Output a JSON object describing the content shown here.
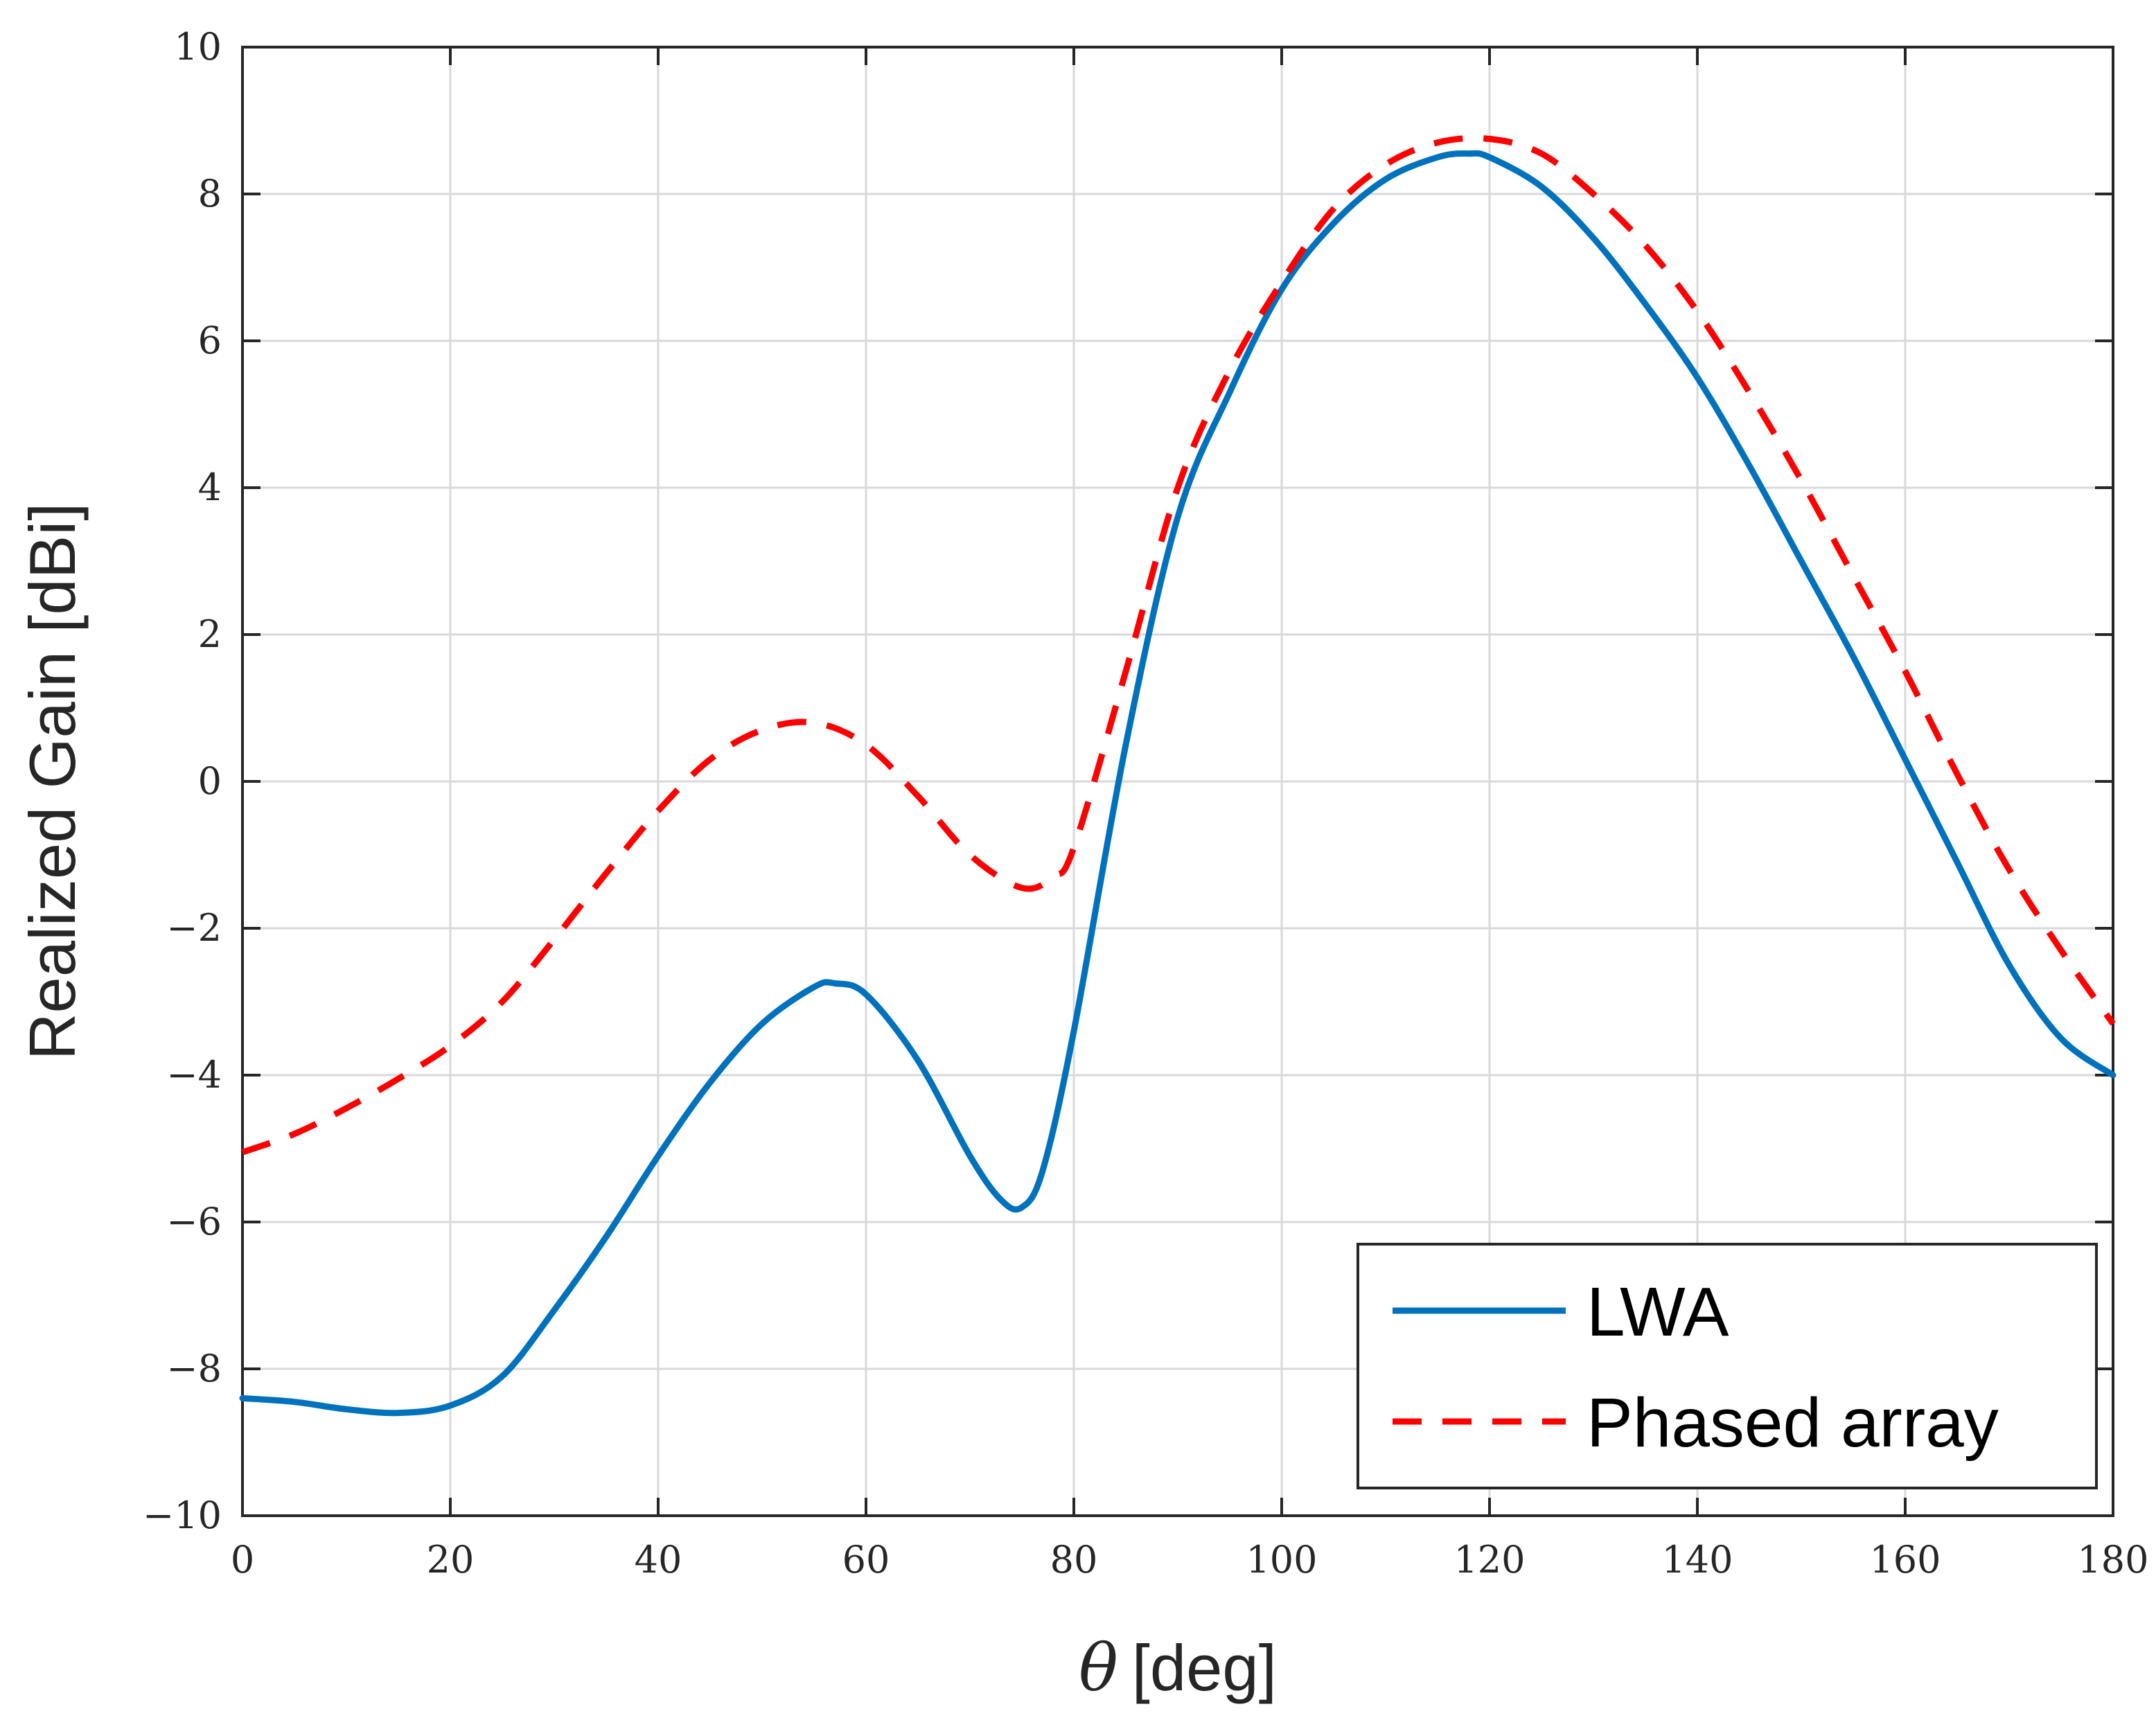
{
  "chart_data": {
    "type": "line",
    "title": "",
    "xlabel_symbol": "θ",
    "xlabel_unit": "[deg]",
    "ylabel": "Realized Gain [dBi]",
    "xlim": [
      0,
      180
    ],
    "ylim": [
      -10,
      10
    ],
    "grid": true,
    "legend_position": "bottom-right",
    "x_ticks": [
      0,
      20,
      40,
      60,
      80,
      100,
      120,
      140,
      160,
      180
    ],
    "y_ticks": [
      -10,
      -8,
      -6,
      -4,
      -2,
      0,
      2,
      4,
      6,
      8,
      10
    ],
    "x_tick_labels": [
      "0",
      "20",
      "40",
      "60",
      "80",
      "100",
      "120",
      "140",
      "160",
      "180"
    ],
    "y_tick_labels": [
      "−10",
      "−8",
      "−6",
      "−4",
      "−2",
      "0",
      "2",
      "4",
      "6",
      "8",
      "10"
    ],
    "series": [
      {
        "name": "LWA",
        "color": "#0072BD",
        "style": "solid",
        "x": [
          0,
          5,
          10,
          15,
          20,
          25,
          30,
          35,
          40,
          45,
          50,
          55,
          57,
          60,
          65,
          70,
          73,
          75,
          77,
          80,
          85,
          90,
          95,
          100,
          105,
          110,
          115,
          118,
          120,
          125,
          130,
          135,
          140,
          145,
          150,
          155,
          160,
          165,
          170,
          175,
          180
        ],
        "y": [
          -8.4,
          -8.45,
          -8.55,
          -8.6,
          -8.5,
          -8.1,
          -7.2,
          -6.2,
          -5.1,
          -4.1,
          -3.3,
          -2.8,
          -2.75,
          -2.9,
          -3.8,
          -5.1,
          -5.7,
          -5.8,
          -5.3,
          -3.4,
          0.5,
          3.6,
          5.3,
          6.7,
          7.6,
          8.2,
          8.5,
          8.55,
          8.5,
          8.1,
          7.4,
          6.5,
          5.5,
          4.3,
          3.0,
          1.7,
          0.3,
          -1.1,
          -2.5,
          -3.5,
          -4.0
        ]
      },
      {
        "name": "Phased array",
        "color": "#FF0000",
        "style": "dashed",
        "x": [
          0,
          5,
          10,
          15,
          20,
          25,
          30,
          35,
          40,
          45,
          50,
          55,
          60,
          65,
          70,
          75,
          78,
          80,
          85,
          90,
          95,
          100,
          105,
          110,
          115,
          120,
          125,
          130,
          135,
          140,
          145,
          150,
          155,
          160,
          165,
          170,
          175,
          180
        ],
        "y": [
          -5.05,
          -4.8,
          -4.45,
          -4.05,
          -3.6,
          -3.0,
          -2.15,
          -1.25,
          -0.4,
          0.3,
          0.7,
          0.8,
          0.5,
          -0.2,
          -1.0,
          -1.45,
          -1.3,
          -0.9,
          1.5,
          4.0,
          5.6,
          6.8,
          7.8,
          8.4,
          8.7,
          8.75,
          8.55,
          8.0,
          7.3,
          6.4,
          5.3,
          4.1,
          2.8,
          1.5,
          0.1,
          -1.2,
          -2.3,
          -3.3
        ]
      }
    ]
  }
}
